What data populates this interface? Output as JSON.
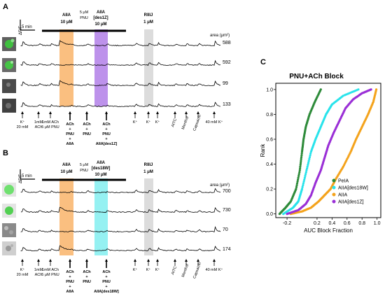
{
  "panelA": {
    "letter": "A",
    "scale_v": "ΔF/F",
    "scale_h": "5 min",
    "area_header": "area (μm²)",
    "toxin_labels": [
      {
        "l1": "AIIA",
        "l2": "10 μM",
        "bold": true
      },
      {
        "l1": "5 μM",
        "l2": "PNU",
        "bold": false
      },
      {
        "l1": "AIIA",
        "l2": "[des1Z]",
        "l3": "10 μM",
        "bold": true
      },
      {
        "l1": "RIIIJ",
        "l2": "1 μM",
        "bold": true
      }
    ],
    "areas": [
      "588",
      "592",
      "99",
      "133"
    ],
    "stim_labels": [
      {
        "l1": "K⁺",
        "l2": "20 mM"
      },
      {
        "l1": "1mM",
        "l2": "ACh"
      },
      {
        "l1": "1mM ACh",
        "l2": "5 μM PNU"
      },
      {
        "l1": "ACh",
        "l2": "+",
        "l3": "PNU",
        "l4": "+",
        "l5": "AIIA"
      },
      {
        "l1": "ACh",
        "l2": "+",
        "l3": "PNU"
      },
      {
        "l1": "ACh",
        "l2": "+",
        "l3": "PNU",
        "l4": "+",
        "l5": "AIIA[des1Z]"
      },
      {
        "l1": "K⁺"
      },
      {
        "l1": "K⁺"
      },
      {
        "l1": "K⁺"
      },
      {
        "l1": "AITC"
      },
      {
        "l1": "Menthol"
      },
      {
        "l1": "Capsaicin"
      },
      {
        "l1": "40 mM K⁺"
      }
    ]
  },
  "panelB": {
    "letter": "B",
    "scale_v": "ΔF/F",
    "scale_h": "5 min",
    "area_header": "area (μm²)",
    "toxin_labels": [
      {
        "l1": "AIIA",
        "l2": "10 μM",
        "bold": true
      },
      {
        "l1": "5 μM",
        "l2": "PNU",
        "bold": false
      },
      {
        "l1": "AIIA",
        "l2": "[des18W]",
        "l3": "10 μM",
        "bold": true
      },
      {
        "l1": "RIIIJ",
        "l2": "1 μM",
        "bold": true
      }
    ],
    "areas": [
      "700",
      "730",
      "70",
      "174"
    ],
    "stim_labels": [
      {
        "l1": "K⁺",
        "l2": "20 mM"
      },
      {
        "l1": "1mM",
        "l2": "ACh"
      },
      {
        "l1": "1mM ACh",
        "l2": "5 μM PNU"
      },
      {
        "l1": "ACh",
        "l2": "+",
        "l3": "PNU",
        "l4": "+",
        "l5": "AIIA"
      },
      {
        "l1": "ACh",
        "l2": "+",
        "l3": "PNU"
      },
      {
        "l1": "ACh",
        "l2": "+",
        "l3": "PNU",
        "l4": "+",
        "l5": "AIIA[des18W]"
      },
      {
        "l1": "K⁺"
      },
      {
        "l1": "K⁺"
      },
      {
        "l1": "K⁺"
      },
      {
        "l1": "AITC"
      },
      {
        "l1": "Menthol"
      },
      {
        "l1": "Capsaicin"
      },
      {
        "l1": "40 mM K⁺"
      }
    ]
  },
  "panelC": {
    "letter": "C",
    "title": "PNU+ACh Block",
    "xlabel": "AUC Block Fraction",
    "ylabel": "Rank",
    "xticks": [
      "-0.2",
      "0.2",
      "0.4",
      "0.6",
      "0.8",
      "1.0"
    ],
    "yticks": [
      "0.0",
      "0.2",
      "0.4",
      "0.6",
      "0.8",
      "1.0"
    ]
  },
  "colors": {
    "orange": "#f9b46a",
    "purple": "#b27fe8",
    "cyan": "#83eef0",
    "gray": "#d6d6d6",
    "pelA": "#2e8b3a",
    "des18W": "#29e3eb",
    "aiiA": "#f4a31c",
    "des1Z": "#9a2fd6"
  },
  "chart_data": {
    "type": "scatter",
    "title": "PNU+ACh Block",
    "xlabel": "AUC Block Fraction",
    "ylabel": "Rank",
    "xlim": [
      -0.35,
      1.05
    ],
    "ylim": [
      -0.03,
      1.05
    ],
    "legend_position": "bottom-right",
    "series": [
      {
        "name": "PeIA",
        "color": "#2e8b3a",
        "x": [
          -0.3,
          -0.22,
          -0.15,
          -0.08,
          -0.03,
          0.0,
          0.02,
          0.05,
          0.1,
          0.17,
          0.25
        ],
        "y": [
          0.0,
          0.05,
          0.1,
          0.2,
          0.35,
          0.5,
          0.6,
          0.7,
          0.8,
          0.9,
          1.0
        ]
      },
      {
        "name": "AIIA[des18W]",
        "color": "#29e3eb",
        "x": [
          -0.25,
          -0.12,
          -0.05,
          0.0,
          0.06,
          0.12,
          0.18,
          0.25,
          0.32,
          0.4,
          0.55,
          0.75
        ],
        "y": [
          0.0,
          0.05,
          0.1,
          0.2,
          0.35,
          0.5,
          0.6,
          0.7,
          0.8,
          0.88,
          0.95,
          1.0
        ]
      },
      {
        "name": "AIIA",
        "color": "#f4a31c",
        "x": [
          -0.15,
          0.0,
          0.12,
          0.22,
          0.3,
          0.38,
          0.45,
          0.55,
          0.65,
          0.72,
          0.8,
          0.88,
          0.95,
          0.99
        ],
        "y": [
          0.0,
          0.02,
          0.05,
          0.1,
          0.15,
          0.2,
          0.28,
          0.38,
          0.5,
          0.6,
          0.7,
          0.8,
          0.9,
          1.0
        ]
      },
      {
        "name": "AIIA[des1Z]",
        "color": "#9a2fd6",
        "x": [
          -0.2,
          -0.05,
          0.05,
          0.12,
          0.18,
          0.25,
          0.3,
          0.35,
          0.42,
          0.5,
          0.58,
          0.68,
          0.8,
          0.92
        ],
        "y": [
          0.0,
          0.03,
          0.08,
          0.15,
          0.25,
          0.35,
          0.45,
          0.55,
          0.65,
          0.75,
          0.85,
          0.92,
          0.97,
          1.0
        ]
      }
    ]
  }
}
